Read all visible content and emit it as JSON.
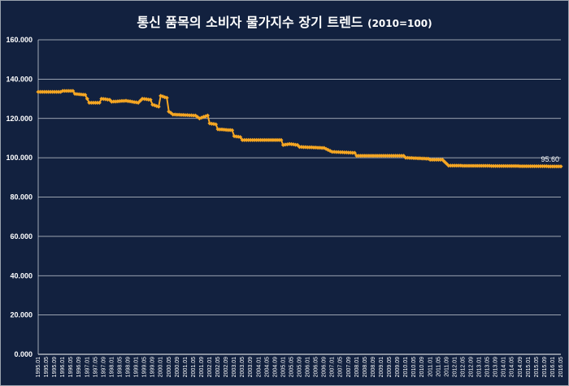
{
  "chart_data": {
    "type": "line",
    "title": "통신 품목의 소비자 물가지수 장기 트렌드",
    "subtitle": "(2010=100)",
    "xlabel": "",
    "ylabel": "",
    "ylim": [
      0,
      160
    ],
    "y_ticks": [
      "0.000",
      "20.000",
      "40.000",
      "60.000",
      "80.000",
      "100.000",
      "120.000",
      "140.000",
      "160.000"
    ],
    "y_tick_values": [
      0,
      20,
      40,
      60,
      80,
      100,
      120,
      140,
      160
    ],
    "grid": true,
    "legend": "none",
    "line_color": "#f5a623",
    "x_ticks": [
      "1995.01",
      "1995.05",
      "1995.09",
      "1996.01",
      "1996.05",
      "1996.09",
      "1997.01",
      "1997.05",
      "1997.09",
      "1998.01",
      "1998.05",
      "1998.09",
      "1999.01",
      "1999.05",
      "1999.09",
      "2000.01",
      "2000.05",
      "2000.09",
      "2001.01",
      "2001.05",
      "2001.09",
      "2002.01",
      "2002.05",
      "2002.09",
      "2003.01",
      "2003.05",
      "2003.09",
      "2004.01",
      "2004.05",
      "2004.09",
      "2005.01",
      "2005.05",
      "2005.09",
      "2006.01",
      "2006.05",
      "2006.09",
      "2007.01",
      "2007.05",
      "2007.09",
      "2008.01",
      "2008.05",
      "2008.09",
      "2009.01",
      "2009.05",
      "2009.09",
      "2010.01",
      "2010.05",
      "2010.09",
      "2011.01",
      "2011.05",
      "2011.09",
      "2012.01",
      "2012.05",
      "2012.09",
      "2013.01",
      "2013.05",
      "2013.09",
      "2014.01",
      "2014.05",
      "2014.09",
      "2015.01",
      "2015.05",
      "2015.09",
      "2016.01",
      "2016.05"
    ],
    "anchors": [
      [
        "1995-01",
        133.5
      ],
      [
        "1995-12",
        133.5
      ],
      [
        "1996-01",
        134.0
      ],
      [
        "1996-06",
        134.0
      ],
      [
        "1996-07",
        132.5
      ],
      [
        "1996-12",
        132.0
      ],
      [
        "1997-02",
        128.0
      ],
      [
        "1997-07",
        128.0
      ],
      [
        "1997-08",
        130.0
      ],
      [
        "1997-12",
        129.5
      ],
      [
        "1998-01",
        128.5
      ],
      [
        "1998-08",
        129.0
      ],
      [
        "1999-02",
        128.0
      ],
      [
        "1999-04",
        130.0
      ],
      [
        "1999-08",
        129.5
      ],
      [
        "1999-09",
        127.0
      ],
      [
        "1999-12",
        126.0
      ],
      [
        "2000-01",
        131.5
      ],
      [
        "2000-04",
        130.5
      ],
      [
        "2000-05",
        123.5
      ],
      [
        "2000-07",
        122.0
      ],
      [
        "2001-06",
        121.5
      ],
      [
        "2001-08",
        120.0
      ],
      [
        "2001-12",
        121.5
      ],
      [
        "2002-01",
        117.5
      ],
      [
        "2002-04",
        117.0
      ],
      [
        "2002-05",
        114.5
      ],
      [
        "2002-12",
        114.0
      ],
      [
        "2003-01",
        111.0
      ],
      [
        "2003-04",
        110.5
      ],
      [
        "2003-05",
        109.0
      ],
      [
        "2004-12",
        109.0
      ],
      [
        "2005-01",
        106.5
      ],
      [
        "2005-04",
        107.0
      ],
      [
        "2005-08",
        106.5
      ],
      [
        "2005-09",
        105.5
      ],
      [
        "2006-09",
        105.0
      ],
      [
        "2007-01",
        103.0
      ],
      [
        "2007-12",
        102.5
      ],
      [
        "2008-01",
        101.0
      ],
      [
        "2009-12",
        101.0
      ],
      [
        "2010-01",
        100.0
      ],
      [
        "2010-12",
        99.5
      ],
      [
        "2011-01",
        99.0
      ],
      [
        "2011-07",
        99.0
      ],
      [
        "2011-10",
        96.0
      ],
      [
        "2016-05",
        95.6
      ]
    ],
    "last_label": "95.60"
  }
}
